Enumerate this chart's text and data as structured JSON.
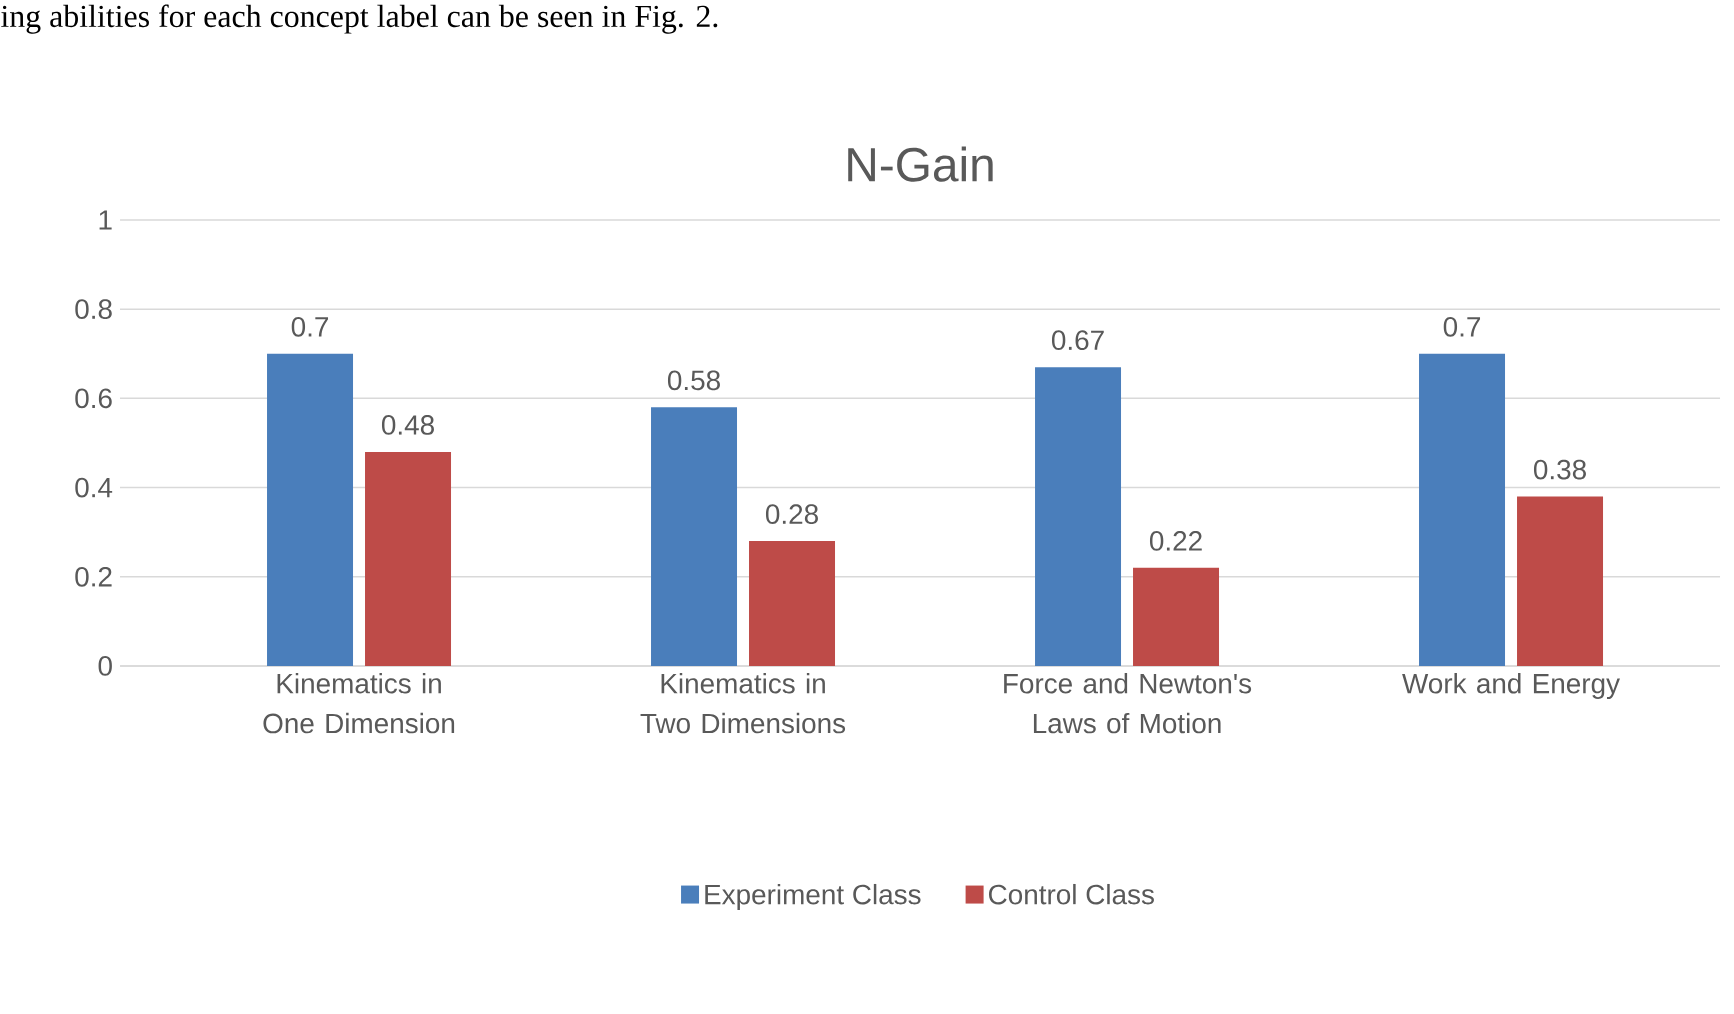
{
  "chart_data": {
    "type": "bar",
    "title": "N-Gain",
    "annotations": [
      "ing abilities for each concept label can be seen in Fig. 2."
    ],
    "categories": [
      "Kinematics in One Dimension",
      "Kinematics in Two Dimensions",
      "Force and Newton's Laws of Motion",
      "Work and Energy"
    ],
    "series": [
      {
        "name": "Experiment Class",
        "color": "#4a7ebb",
        "values": [
          0.7,
          0.58,
          0.67,
          0.7
        ]
      },
      {
        "name": "Control Class",
        "color": "#be4b48",
        "values": [
          0.48,
          0.28,
          0.22,
          0.38
        ]
      }
    ],
    "ylim": [
      0,
      1
    ],
    "yticks": [
      0,
      0.2,
      0.4,
      0.6,
      0.8,
      1
    ],
    "grid": "y",
    "legend": "bottom",
    "data_labels": true
  }
}
